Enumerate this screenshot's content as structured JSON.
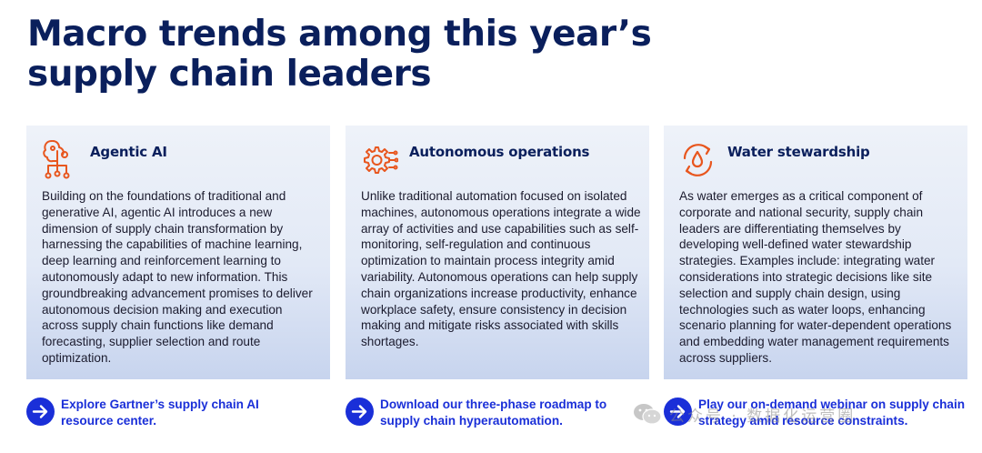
{
  "heading": {
    "line1": "Macro trends among this year’s",
    "line2": "supply chain leaders"
  },
  "cards": [
    {
      "title": "Agentic AI",
      "icon": "ai-brain-circuit-icon",
      "body": "Building on the foundations of traditional and generative AI, agentic AI introduces a new dimension of supply chain transformation by harnessing the capabilities of machine learning, deep learning and reinforcement learning to autonomously adapt to new information. This groundbreaking advancement promises to deliver autonomous decision making and execution across supply chain functions like demand forecasting, supplier selection and route optimization."
    },
    {
      "title": "Autonomous operations",
      "icon": "gear-circuit-icon",
      "body": "Unlike traditional automation focused on isolated machines, autonomous operations integrate a wide array of activities and use capabilities such as self-monitoring, self-regulation and continuous optimization to maintain process integrity amid variability. Autonomous operations can help supply chain organizations increase productivity, enhance workplace safety, ensure consistency in decision making and mitigate risks associated with skills shortages."
    },
    {
      "title": "Water stewardship",
      "icon": "water-drop-cycle-icon",
      "body": "As water emerges as a critical component of corporate and national security, supply chain leaders are differentiating themselves by developing well-defined water stewardship strategies. Examples include: integrating water considerations into strategic decisions like site selection and supply chain design, using technologies such as water loops, enhancing scenario planning for water-dependent operations and embedding water management requirements across suppliers."
    }
  ],
  "ctas": [
    {
      "text": "Explore Gartner’s supply chain AI resource center."
    },
    {
      "text": "Download our three-phase roadmap to supply chain hyperautomation."
    },
    {
      "text": "Play our on-demand webinar on supply chain strategy amid resource constraints."
    }
  ],
  "watermark": {
    "text": "公众号 · 数据化运营圈",
    "icon": "wechat-icon"
  },
  "colors": {
    "navy": "#0a1f5c",
    "accent_orange": "#e8561e",
    "link_blue": "#1a2fd8"
  }
}
